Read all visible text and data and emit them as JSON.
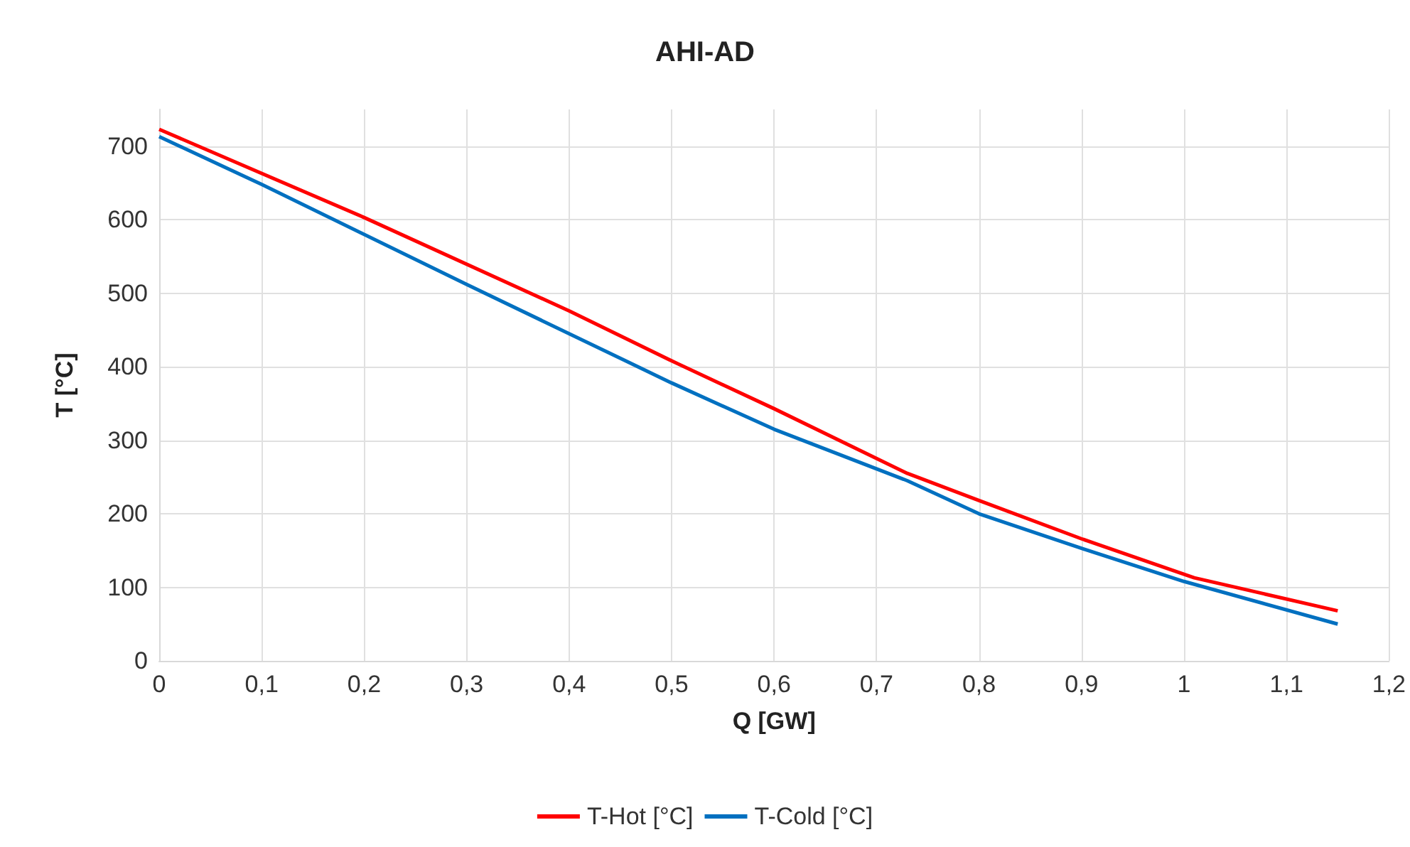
{
  "chart_data": {
    "type": "line",
    "title": "AHI-AD",
    "xlabel": "Q [GW]",
    "ylabel": "T [°C]",
    "xlim": [
      0,
      1.2
    ],
    "xticks": [
      0,
      {
        "value": 0.1,
        "label": "0,1"
      },
      {
        "value": 0.2,
        "label": "0,2"
      },
      {
        "value": 0.3,
        "label": "0,3"
      },
      {
        "value": 0.4,
        "label": "0,4"
      },
      {
        "value": 0.5,
        "label": "0,5"
      },
      {
        "value": 0.6,
        "label": "0,6"
      },
      {
        "value": 0.7,
        "label": "0,7"
      },
      {
        "value": 0.8,
        "label": "0,8"
      },
      {
        "value": 0.9,
        "label": "0,9"
      },
      1,
      {
        "value": 1.1,
        "label": "1,1"
      },
      {
        "value": 1.2,
        "label": "1,2"
      }
    ],
    "ylim": [
      0,
      750
    ],
    "yticks": [
      0,
      100,
      200,
      300,
      400,
      500,
      600,
      700
    ],
    "grid": true,
    "legend": "bottom",
    "marker": "none",
    "line_style": "solid",
    "series": [
      {
        "name": "T-Hot [°C]",
        "color": "#ff0000",
        "x": [
          0,
          0.2,
          0.4,
          0.5,
          0.6,
          0.73,
          0.8,
          0.9,
          1.01,
          1.15
        ],
        "values": [
          723,
          603,
          476,
          408,
          343,
          255,
          218,
          166,
          113,
          68
        ]
      },
      {
        "name": "T-Cold [°C]",
        "color": "#0070c0",
        "x": [
          0,
          0.1,
          0.3,
          0.5,
          0.6,
          0.73,
          0.8,
          0.9,
          1.0,
          1.15
        ],
        "values": [
          713,
          648,
          512,
          378,
          315,
          245,
          200,
          153,
          108,
          50
        ]
      }
    ]
  }
}
